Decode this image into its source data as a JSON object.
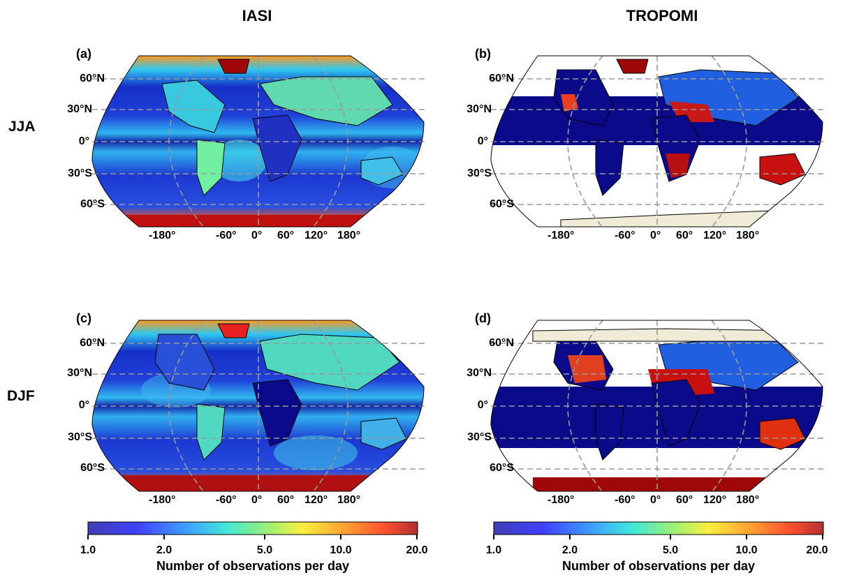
{
  "columns": [
    "IASI",
    "TROPOMI"
  ],
  "rows": [
    "JJA",
    "DJF"
  ],
  "panels": [
    {
      "label": "(a)",
      "instrument": "IASI",
      "season": "JJA"
    },
    {
      "label": "(b)",
      "instrument": "TROPOMI",
      "season": "JJA"
    },
    {
      "label": "(c)",
      "instrument": "IASI",
      "season": "DJF"
    },
    {
      "label": "(d)",
      "instrument": "TROPOMI",
      "season": "DJF"
    }
  ],
  "lat_ticks": [
    "60°N",
    "30°N",
    "0°",
    "30°S",
    "60°S"
  ],
  "lon_ticks": [
    "-180°",
    "-60°",
    "0°",
    "60°",
    "120°",
    "180°"
  ],
  "colorbar": {
    "label": "Number of observations per day",
    "ticks": [
      "1.0",
      "2.0",
      "5.0",
      "10.0",
      "20.0"
    ],
    "scale": "log",
    "range": [
      1.0,
      20.0
    ],
    "colormap": "jet"
  },
  "colors": {
    "ocean_low": "#0a0a8a",
    "land_fill": "#efebd6",
    "grid": "#999999"
  }
}
